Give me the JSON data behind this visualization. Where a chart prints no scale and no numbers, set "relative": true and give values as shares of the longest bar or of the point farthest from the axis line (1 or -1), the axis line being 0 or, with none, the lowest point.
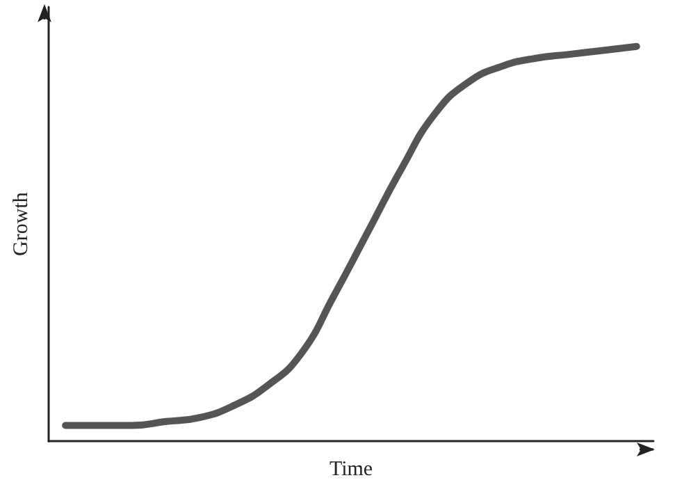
{
  "chart_data": {
    "type": "line",
    "relative": true,
    "xlabel": "Time",
    "ylabel": "Growth",
    "categories": [
      null,
      null,
      null,
      null,
      null,
      null,
      null,
      null,
      null,
      null,
      null,
      null,
      null,
      null,
      null,
      null,
      null,
      null
    ],
    "series": [
      {
        "color": "#555555",
        "values": [
          0.04,
          0.04,
          0.04,
          0.05,
          0.06,
          0.09,
          0.14,
          0.22,
          0.37,
          0.53,
          0.69,
          0.83,
          0.91,
          0.95,
          0.97,
          0.98,
          0.99,
          1
        ]
      }
    ],
    "grid": false,
    "marker": "none",
    "line_style": "solid"
  }
}
